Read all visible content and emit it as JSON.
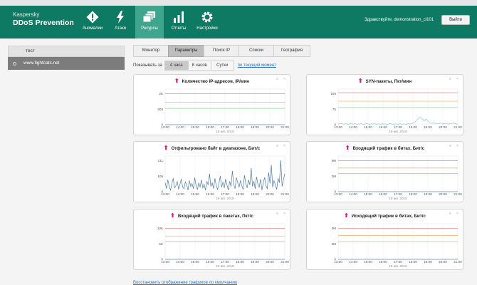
{
  "header": {
    "brand_line1": "Kaspersky",
    "brand_line2": "DDoS Prevention",
    "nav": [
      {
        "label": "Аномалии",
        "icon": "alert-diamond-icon",
        "active": false
      },
      {
        "label": "Атаки",
        "icon": "lightning-icon",
        "active": false
      },
      {
        "label": "Ресурсы",
        "icon": "resources-stack-icon",
        "active": true
      },
      {
        "label": "Отчеты",
        "icon": "bar-chart-icon",
        "active": false
      },
      {
        "label": "Настройки",
        "icon": "gear-icon",
        "active": false
      }
    ],
    "greeting": "Здравствуйте, demonstration_cl101",
    "logout_label": "Выйти"
  },
  "sidebar": {
    "header": "тест",
    "item": "www.fightcats.net"
  },
  "tabs": [
    {
      "label": "Монитор",
      "active": false
    },
    {
      "label": "Параметры",
      "active": true
    },
    {
      "label": "Поиск IP",
      "active": false
    },
    {
      "label": "Списки",
      "active": false
    },
    {
      "label": "География",
      "active": false
    }
  ],
  "period": {
    "label": "Показывать за",
    "options": [
      {
        "label": "4 часа",
        "active": true
      },
      {
        "label": "8 часов",
        "active": false
      },
      {
        "label": "Сутки",
        "active": false
      }
    ],
    "now_link": "по текущий момент"
  },
  "panel_controls": {
    "settings": "≡",
    "close": "×"
  },
  "footer_link": "Восстановить отображение графиков по умолчанию",
  "chart_data": [
    {
      "type": "line",
      "title": "Количество IP-адресов, IP/мин",
      "x_ticks": [
        "13:00",
        "14:00",
        "15:00",
        "16:00",
        "17:00",
        "18:00",
        "19:00",
        "20:00",
        "21:00"
      ],
      "x_date": "19 авг. 2015",
      "y_ticks": [
        "0",
        "800",
        "2K"
      ],
      "ylim": [
        0,
        2200
      ],
      "thresholds": [
        {
          "value": 2000,
          "color": "#f08a8a"
        },
        {
          "value": 1450,
          "color": "#f6b96a"
        },
        {
          "value": 1050,
          "color": "#8fd68f"
        }
      ],
      "series": [
        {
          "color": "#5b8fb5",
          "values": [
            0,
            0,
            0,
            0,
            0,
            0,
            0,
            0,
            0
          ]
        }
      ]
    },
    {
      "type": "line",
      "title": "SYN-пакеты, Пкт/мин",
      "x_ticks": [
        "13:00",
        "14:00",
        "15:00",
        "16:00",
        "17:00",
        "18:00",
        "19:00",
        "20:00",
        "21:00"
      ],
      "x_date": "19 авг. 2015",
      "y_ticks": [
        "0",
        "75",
        "150"
      ],
      "ylim": [
        0,
        160
      ],
      "thresholds": [
        {
          "value": 150,
          "color": "#f08a8a"
        },
        {
          "value": 110,
          "color": "#f6b96a"
        },
        {
          "value": 80,
          "color": "#8fd68f"
        }
      ],
      "series": [
        {
          "color": "#7fd2d2",
          "values": [
            6,
            3,
            7,
            4,
            2,
            5,
            3,
            2,
            6,
            4,
            3,
            5,
            2,
            4,
            3,
            6,
            3,
            2,
            4,
            5,
            3,
            2,
            4,
            3,
            5,
            2,
            3,
            4,
            2,
            5,
            3,
            4,
            2,
            3,
            5,
            4,
            2,
            3,
            4,
            2,
            3,
            5,
            2,
            4,
            3,
            2,
            5,
            3,
            4,
            6,
            9,
            15,
            22,
            28,
            36,
            30,
            24,
            18,
            26,
            20,
            12,
            8,
            6,
            9,
            5,
            7,
            4,
            6,
            8,
            3,
            5,
            7,
            4,
            3,
            6,
            4,
            8,
            5,
            3,
            4
          ]
        }
      ]
    },
    {
      "type": "line",
      "title": "Отфильтровано байт в диапазоне, Бит/с",
      "x_ticks": [
        "13:00",
        "14:00",
        "15:00",
        "16:00",
        "17:00",
        "18:00",
        "19:00",
        "20:00",
        "21:00"
      ],
      "x_date": "19 авг. 2015",
      "y_ticks": [
        "0",
        "106",
        "211"
      ],
      "ylim": [
        0,
        230
      ],
      "thresholds": [],
      "series": [
        {
          "color": "#4e7aa3",
          "values": [
            60,
            20,
            80,
            35,
            10,
            55,
            90,
            25,
            40,
            70,
            15,
            50,
            85,
            30,
            20,
            65,
            45,
            10,
            75,
            35,
            55,
            20,
            95,
            40,
            15,
            60,
            30,
            80,
            25,
            50,
            10,
            70,
            45,
            120,
            35,
            60,
            20,
            90,
            40,
            15,
            55,
            105,
            30,
            65,
            25,
            85,
            45,
            10,
            70,
            35,
            140,
            50,
            20,
            95,
            60,
            30,
            75,
            40,
            15,
            110,
            55,
            25,
            80,
            45,
            160,
            35,
            70,
            20,
            100,
            50,
            30,
            85,
            10,
            60,
            95,
            40,
            20,
            130,
            55,
            180,
            30,
            75,
            45,
            15,
            90,
            60,
            211,
            35,
            80,
            120
          ]
        }
      ]
    },
    {
      "type": "line",
      "title": "Входящий трафик в битах, Бит/с",
      "x_ticks": [
        "13:00",
        "14:00",
        "15:00",
        "16:00",
        "17:00",
        "18:00",
        "19:00",
        "20:00",
        "21:00"
      ],
      "x_date": "19 авг. 2015",
      "y_ticks": [
        "0",
        "2M",
        "5M"
      ],
      "ylim": [
        0,
        5500000
      ],
      "thresholds": [
        {
          "value": 5000000,
          "color": "#f08a8a"
        },
        {
          "value": 3800000,
          "color": "#f6b96a"
        },
        {
          "value": 2900000,
          "color": "#8fd68f"
        }
      ],
      "series": [
        {
          "color": "#5b8fb5",
          "values": [
            0,
            0,
            0,
            0,
            0,
            0,
            0,
            0,
            0
          ]
        }
      ]
    },
    {
      "type": "line",
      "title": "Входящий трафик в пакетах, Пкт/с",
      "x_ticks": [
        "13:00",
        "14:00",
        "15:00",
        "16:00",
        "17:00",
        "18:00",
        "19:00",
        "20:00",
        "21:00"
      ],
      "x_date": "19 авг. 2015",
      "y_ticks": [
        "0",
        "5K",
        "10K"
      ],
      "ylim": [
        0,
        11000
      ],
      "thresholds": [
        {
          "value": 10000,
          "color": "#f08a8a"
        },
        {
          "value": 7500,
          "color": "#f6b96a"
        },
        {
          "value": 5600,
          "color": "#8fd68f"
        }
      ],
      "series": [
        {
          "color": "#5b8fb5",
          "values": [
            0,
            0,
            0,
            0,
            0,
            0,
            0,
            0,
            0
          ]
        }
      ]
    },
    {
      "type": "line",
      "title": "Исходящий трафик в битах, Бит/с",
      "x_ticks": [
        "13:00",
        "14:00",
        "15:00",
        "16:00",
        "17:00",
        "18:00",
        "19:00",
        "20:00",
        "21:00"
      ],
      "x_date": "19 авг. 2015",
      "y_ticks": [
        "0",
        "2M",
        "3M"
      ],
      "ylim": [
        0,
        3300000
      ],
      "thresholds": [
        {
          "value": 3000000,
          "color": "#f08a8a"
        },
        {
          "value": 2300000,
          "color": "#f6b96a"
        },
        {
          "value": 1700000,
          "color": "#8fd68f"
        }
      ],
      "series": [
        {
          "color": "#5b8fb5",
          "values": [
            0,
            0,
            0,
            0,
            0,
            0,
            0,
            0,
            0
          ]
        }
      ]
    }
  ]
}
